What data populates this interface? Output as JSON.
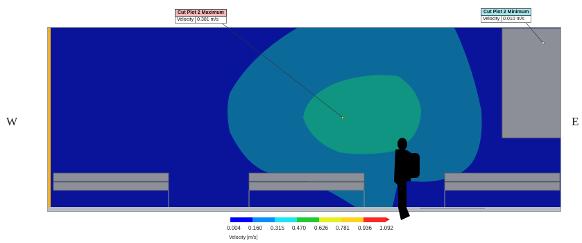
{
  "compass": {
    "west": "W",
    "east": "E"
  },
  "max_callout": {
    "title": "Cut Plot 2 Maximum",
    "field": "Velocity",
    "value": "0.381 m/s"
  },
  "min_callout": {
    "title": "Cut Plot 2 Minimum",
    "field": "Velocity",
    "value": "0.010 m/s"
  },
  "legend": {
    "label": "Velocity [m/s]",
    "ticks": [
      "0.004",
      "0.160",
      "0.315",
      "0.470",
      "0.626",
      "0.781",
      "0.936",
      "1.092"
    ],
    "colors": [
      "#0000ff",
      "#0a8cff",
      "#19e6f0",
      "#1ecc32",
      "#e6f01e",
      "#ffd21e",
      "#ff2828"
    ],
    "max_color": "#ff1010"
  },
  "colors": {
    "background_zone": "#0a149a",
    "outer_zone": "#0c6a9b",
    "inner_zone": "#0f9582",
    "furniture": "#8c8f98",
    "person": "#000000"
  },
  "icons": [
    "person-silhouette-icon",
    "max-probe-icon",
    "min-probe-icon"
  ]
}
